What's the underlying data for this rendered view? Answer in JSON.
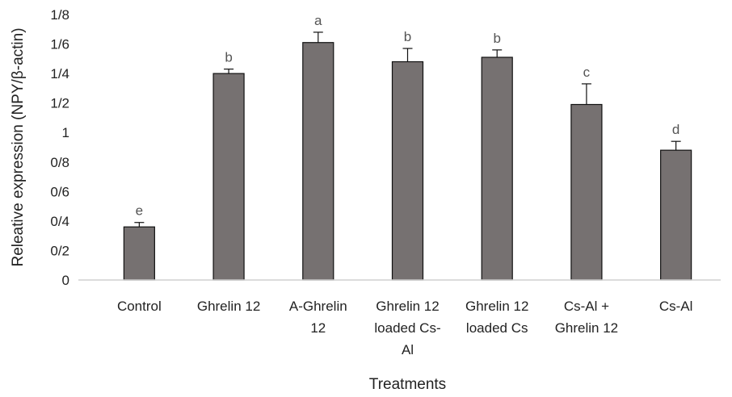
{
  "chart_data": {
    "type": "bar",
    "xlabel": "Treatments",
    "ylabel": "Releative expression (NPY/β-actin)",
    "ylim": [
      0,
      1.8
    ],
    "yticks": [
      {
        "value": 0,
        "label": "0"
      },
      {
        "value": 0.2,
        "label": "0/2"
      },
      {
        "value": 0.4,
        "label": "0/4"
      },
      {
        "value": 0.6,
        "label": "0/6"
      },
      {
        "value": 0.8,
        "label": "0/8"
      },
      {
        "value": 1.0,
        "label": "1"
      },
      {
        "value": 1.2,
        "label": "1/2"
      },
      {
        "value": 1.4,
        "label": "1/4"
      },
      {
        "value": 1.6,
        "label": "1/6"
      },
      {
        "value": 1.8,
        "label": "1/8"
      }
    ],
    "categories": [
      [
        "Control"
      ],
      [
        "Ghrelin 12"
      ],
      [
        "A-Ghrelin",
        "12"
      ],
      [
        "Ghrelin 12",
        "loaded Cs-",
        "Al"
      ],
      [
        "Ghrelin 12",
        "loaded Cs"
      ],
      [
        "Cs-Al +",
        "Ghrelin 12"
      ],
      [
        "Cs-Al"
      ]
    ],
    "values": [
      0.36,
      1.4,
      1.61,
      1.48,
      1.51,
      1.19,
      0.88
    ],
    "errors": [
      0.03,
      0.03,
      0.07,
      0.09,
      0.05,
      0.14,
      0.06
    ],
    "significance": [
      "e",
      "b",
      "a",
      "b",
      "b",
      "c",
      "d"
    ],
    "bar_color": "#767171",
    "grid": false,
    "legend": false
  }
}
